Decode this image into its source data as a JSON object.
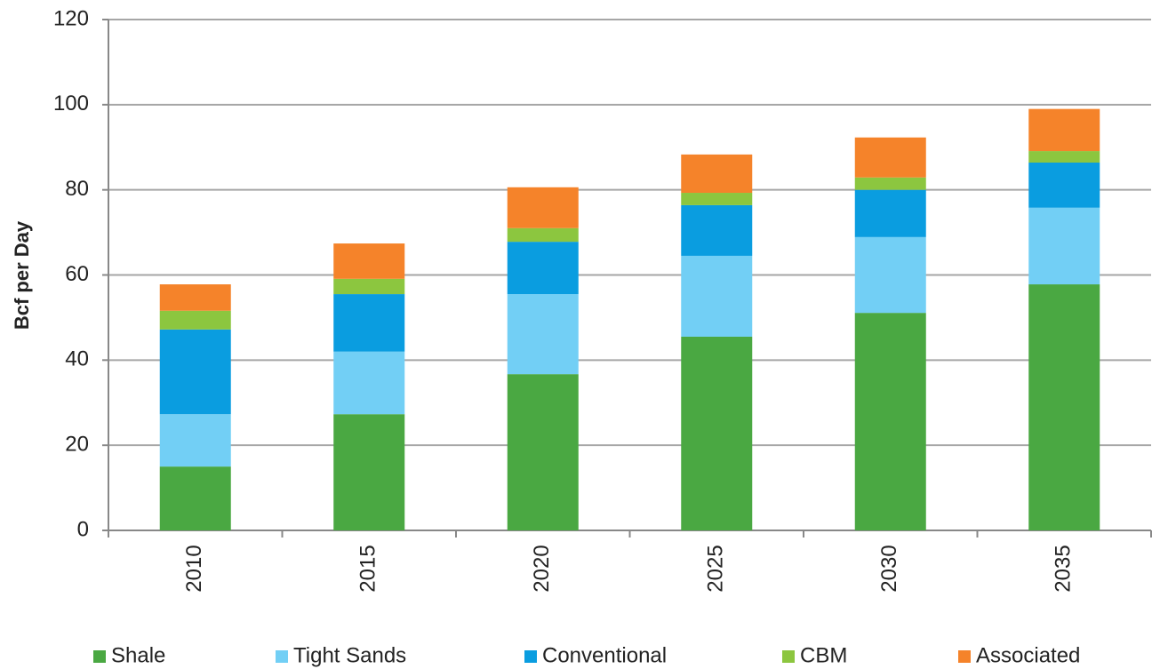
{
  "chart_data": {
    "type": "stacked-bar",
    "y_label": "Bcf per Day",
    "categories": [
      "2010",
      "2015",
      "2020",
      "2025",
      "2030",
      "2035"
    ],
    "series": [
      {
        "name": "Shale",
        "color": "#4aa842",
        "values": [
          15.0,
          27.3,
          36.7,
          45.5,
          51.1,
          57.8
        ]
      },
      {
        "name": "Tight Sands",
        "color": "#72cff5",
        "values": [
          12.3,
          14.7,
          18.8,
          19.0,
          17.8,
          18.0
        ]
      },
      {
        "name": "Conventional",
        "color": "#0a9de0",
        "values": [
          19.9,
          13.5,
          12.3,
          11.9,
          11.1,
          10.6
        ]
      },
      {
        "name": "CBM",
        "color": "#8cc63f",
        "values": [
          4.4,
          3.6,
          3.2,
          2.9,
          2.9,
          2.7
        ]
      },
      {
        "name": "Associated",
        "color": "#f5832a",
        "values": [
          6.2,
          8.3,
          9.6,
          9.0,
          9.4,
          9.9
        ]
      }
    ],
    "ylim": [
      0,
      120
    ],
    "yticks": [
      0,
      20,
      40,
      60,
      80,
      100,
      120
    ],
    "grid": true,
    "legend": "bottom"
  }
}
